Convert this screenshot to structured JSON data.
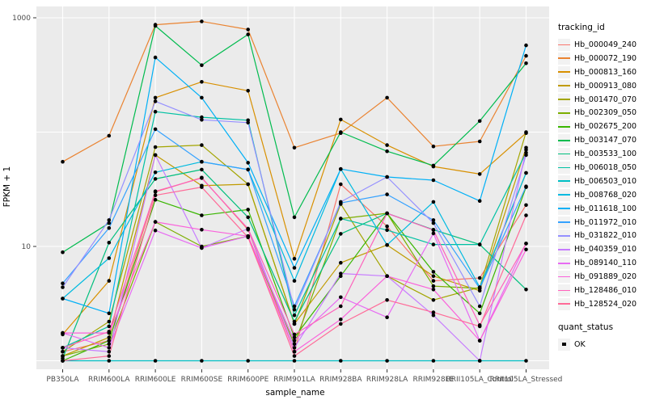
{
  "chart_data": {
    "type": "line",
    "title": "",
    "xlabel": "sample_name",
    "ylabel": "FPKM + 1",
    "y_scale": "log10",
    "ylim": [
      1,
      1000
    ],
    "y_ticks": [
      {
        "label": "1000",
        "value": 1000
      },
      {
        "label": "10",
        "value": 10
      }
    ],
    "y_gridlines": [
      1,
      10,
      100,
      1000
    ],
    "grid": true,
    "legend_position": "right",
    "panel_background": "#EBEBEB",
    "gridline_color": "#FFFFFF",
    "point_color": "#000000",
    "axis_text_color": "#4D4D4D",
    "tick_color": "#333333",
    "categories": [
      "PB350LA",
      "RRIM600LA",
      "RRIM600LE",
      "RRIM600SE",
      "RRIM600PE",
      "RRIM901LA",
      "RRIM928BA",
      "RRIM928LA",
      "RRIM928LE",
      "RRII105LA_Control",
      "RRII105LA_Stressed"
    ],
    "series": [
      {
        "name": "Hb_000049_240",
        "color": "#F8766D",
        "values": [
          1.2,
          1.5,
          30,
          40,
          14,
          1.2,
          35,
          15,
          5.0,
          5.3,
          23
        ]
      },
      {
        "name": "Hb_000072_190",
        "color": "#EA8331",
        "values": [
          55,
          93,
          870,
          930,
          790,
          73,
          98,
          200,
          75,
          83,
          465
        ]
      },
      {
        "name": "Hb_000813_160",
        "color": "#D89000",
        "values": [
          1.7,
          5.0,
          200,
          275,
          230,
          7.8,
          129,
          77,
          50,
          43,
          98
        ]
      },
      {
        "name": "Hb_000913_080",
        "color": "#C09B00",
        "values": [
          1.1,
          1.6,
          63,
          34,
          35,
          2.1,
          7.2,
          10.3,
          5.5,
          4.1,
          73
        ]
      },
      {
        "name": "Hb_001470_070",
        "color": "#A3A500",
        "values": [
          1.2,
          2.2,
          74,
          77,
          35,
          2.1,
          23.5,
          5.5,
          3.4,
          4.4,
          100
        ]
      },
      {
        "name": "Hb_002309_050",
        "color": "#7CAE00",
        "values": [
          1.1,
          1.4,
          16.4,
          10,
          12.3,
          1.4,
          17.5,
          19.5,
          4.5,
          4.3,
          44
        ]
      },
      {
        "name": "Hb_002675_200",
        "color": "#39B600",
        "values": [
          1.0,
          1.5,
          25.6,
          18.7,
          21,
          1.6,
          5.5,
          19.5,
          6.0,
          2.6,
          33
        ]
      },
      {
        "name": "Hb_003147_070",
        "color": "#00BB4E",
        "values": [
          8.9,
          16,
          850,
          385,
          715,
          18,
          100,
          68,
          51,
          125,
          400
        ]
      },
      {
        "name": "Hb_003533_100",
        "color": "#00BF7D",
        "values": [
          1.05,
          10.8,
          39,
          47,
          18,
          2.2,
          12.9,
          19.5,
          14,
          10.4,
          4.2
        ]
      },
      {
        "name": "Hb_006018_050",
        "color": "#00C1A3",
        "values": [
          1.3,
          2.0,
          151,
          135,
          127,
          2.5,
          17.5,
          13.9,
          10.4,
          10.4,
          66
        ]
      },
      {
        "name": "Hb_006503_010",
        "color": "#00BFC4",
        "values": [
          1.0,
          1.0,
          1.0,
          1.0,
          1.0,
          1.0,
          1.0,
          1.0,
          1.0,
          1.0,
          1.0
        ]
      },
      {
        "name": "Hb_008768_020",
        "color": "#00BAE0",
        "values": [
          3.5,
          7.9,
          44.5,
          55,
          47,
          5.0,
          47.5,
          10.3,
          24.5,
          4.4,
          44
        ]
      },
      {
        "name": "Hb_011618_100",
        "color": "#00B0F6",
        "values": [
          3.5,
          2.6,
          450,
          200,
          54,
          6.5,
          47.5,
          40.5,
          38,
          25,
          574
        ]
      },
      {
        "name": "Hb_011972_010",
        "color": "#35A2FF",
        "values": [
          4.75,
          14.5,
          106,
          55,
          47,
          3.0,
          24,
          28.5,
          17,
          4.3,
          33.5
        ]
      },
      {
        "name": "Hb_031822_010",
        "color": "#9590FF",
        "values": [
          4.4,
          17,
          186,
          128,
          121,
          2.8,
          24.5,
          40.5,
          16,
          3.0,
          63
        ]
      },
      {
        "name": "Hb_040359_010",
        "color": "#C77CFF",
        "values": [
          1.3,
          1.2,
          63,
          9.7,
          14.3,
          1.3,
          5.8,
          5.5,
          2.5,
          1.0,
          70
        ]
      },
      {
        "name": "Hb_089140_110",
        "color": "#E76BF3",
        "values": [
          1.75,
          1.3,
          13.8,
          9.7,
          12.3,
          1.5,
          3.6,
          2.4,
          13,
          1.5,
          10.6
        ]
      },
      {
        "name": "Hb_091889_020",
        "color": "#FA62DB",
        "values": [
          1.75,
          1.75,
          16.4,
          14,
          12.3,
          1.2,
          2.3,
          5.5,
          4.2,
          1.5,
          9.4
        ]
      },
      {
        "name": "Hb_128486_010",
        "color": "#FF62BC",
        "values": [
          1.3,
          1.8,
          30.4,
          39.6,
          14.3,
          1.7,
          3.0,
          19.5,
          13.9,
          2.05,
          10.6
        ]
      },
      {
        "name": "Hb_128524_020",
        "color": "#FF6A98",
        "values": [
          1.0,
          1.1,
          28,
          33,
          12,
          1.1,
          2.1,
          3.4,
          2.65,
          2.0,
          18.7
        ]
      }
    ]
  },
  "legend": {
    "tracking_title": "tracking_id",
    "quant_title": "quant_status",
    "quant_items": [
      {
        "label": "OK"
      }
    ],
    "key_background": "#F2F2F2"
  }
}
